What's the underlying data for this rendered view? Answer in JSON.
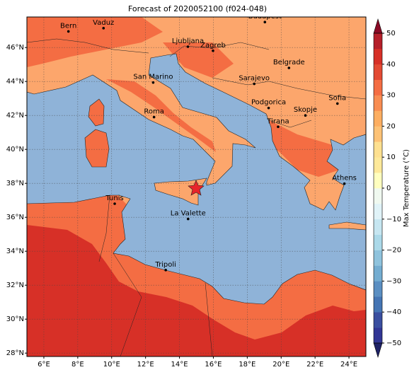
{
  "map": {
    "title": "Forecast of 2020052100 (f024-048)",
    "lon_range": [
      5,
      25
    ],
    "lat_range": [
      27.8,
      47.8
    ],
    "lon_ticks": [
      {
        "value": 6,
        "label": "6°E"
      },
      {
        "value": 8,
        "label": "8°E"
      },
      {
        "value": 10,
        "label": "10°E"
      },
      {
        "value": 12,
        "label": "12°E"
      },
      {
        "value": 14,
        "label": "14°E"
      },
      {
        "value": 16,
        "label": "16°E"
      },
      {
        "value": 18,
        "label": "18°E"
      },
      {
        "value": 20,
        "label": "20°E"
      },
      {
        "value": 22,
        "label": "22°E"
      },
      {
        "value": 24,
        "label": "24°E"
      }
    ],
    "lat_ticks": [
      {
        "value": 28,
        "label": "28°N"
      },
      {
        "value": 30,
        "label": "30°N"
      },
      {
        "value": 32,
        "label": "32°N"
      },
      {
        "value": 34,
        "label": "34°N"
      },
      {
        "value": 36,
        "label": "36°N"
      },
      {
        "value": 38,
        "label": "38°N"
      },
      {
        "value": 40,
        "label": "40°N"
      },
      {
        "value": 42,
        "label": "42°N"
      },
      {
        "value": 44,
        "label": "44°N"
      },
      {
        "value": 46,
        "label": "46°N"
      }
    ],
    "grid": true,
    "cities": [
      {
        "name": "Bern",
        "lon": 7.45,
        "lat": 46.95
      },
      {
        "name": "Vaduz",
        "lon": 9.52,
        "lat": 47.14
      },
      {
        "name": "Budapest",
        "lon": 19.04,
        "lat": 47.5
      },
      {
        "name": "Ljubljana",
        "lon": 14.5,
        "lat": 46.05
      },
      {
        "name": "Zagreb",
        "lon": 15.98,
        "lat": 45.81
      },
      {
        "name": "Belgrade",
        "lon": 20.46,
        "lat": 44.8
      },
      {
        "name": "San Marino",
        "lon": 12.45,
        "lat": 43.94
      },
      {
        "name": "Sarajevo",
        "lon": 18.41,
        "lat": 43.86
      },
      {
        "name": "Sofia",
        "lon": 23.32,
        "lat": 42.7
      },
      {
        "name": "Roma",
        "lon": 12.5,
        "lat": 41.9
      },
      {
        "name": "Podgorica",
        "lon": 19.26,
        "lat": 42.44
      },
      {
        "name": "Skopje",
        "lon": 21.43,
        "lat": 42.0
      },
      {
        "name": "Tirana",
        "lon": 19.82,
        "lat": 41.33
      },
      {
        "name": "Athens",
        "lon": 23.73,
        "lat": 37.98
      },
      {
        "name": "Tunis",
        "lon": 10.18,
        "lat": 36.8
      },
      {
        "name": "La Valette",
        "lon": 14.51,
        "lat": 35.9
      },
      {
        "name": "Tripoli",
        "lon": 13.19,
        "lat": 32.89
      }
    ],
    "colorbar": {
      "label": "Max Temperature (°C)",
      "range": [
        -50,
        50
      ],
      "ticks": [
        {
          "value": -50,
          "label": "−50"
        },
        {
          "value": -40,
          "label": "−40"
        },
        {
          "value": -30,
          "label": "−30"
        },
        {
          "value": -20,
          "label": "−20"
        },
        {
          "value": -10,
          "label": "−10"
        },
        0,
        10,
        20,
        30,
        40,
        50
      ],
      "colors": [
        "#313695",
        "#3a4fa0",
        "#4575b4",
        "#5b8fc2",
        "#74add1",
        "#8fc3dd",
        "#abd9e9",
        "#c6e6f1",
        "#e0f3f8",
        "#f0f9f0",
        "#ffffbf",
        "#fee99a",
        "#fee090",
        "#fdc276",
        "#fdae61",
        "#f88d52",
        "#f46d43",
        "#e34a33",
        "#d73027",
        "#b51f2a"
      ],
      "over_color": "#8b0a26",
      "under_color": "#1e2266"
    }
  }
}
